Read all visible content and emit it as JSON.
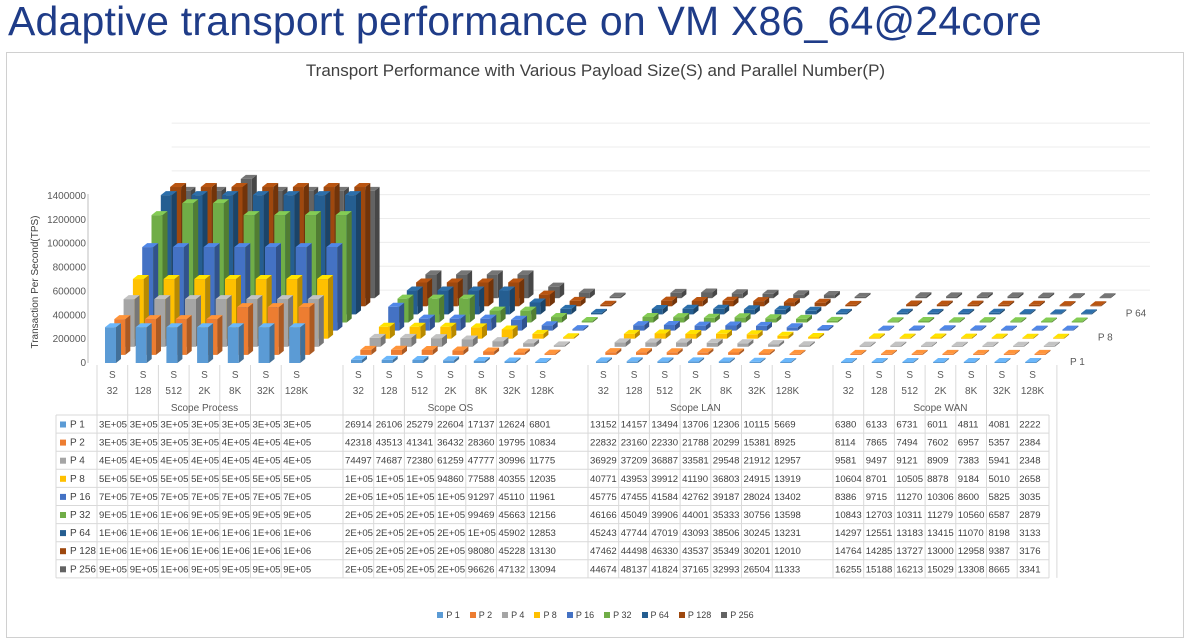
{
  "slide_title": "Adaptive transport performance on VM X86_64@24core",
  "chart_data": {
    "type": "bar",
    "variant": "3d-column-with-data-table",
    "title": "Transport Performance with Various Payload Size(S) and Parallel Number(P)",
    "ylabel": "Transaction Per Second(TPS)",
    "ylim": [
      0,
      1400000
    ],
    "yticks": [
      0,
      200000,
      400000,
      600000,
      800000,
      1000000,
      1200000,
      1400000
    ],
    "ytick_labels": [
      "0",
      "200000",
      "400000",
      "600000",
      "800000",
      "1000000",
      "1200000",
      "1400000"
    ],
    "depth_axis_labels": [
      "P 1",
      "P 8",
      "P 64"
    ],
    "groups": [
      "Scope Process",
      "Scope OS",
      "Scope LAN",
      "Scope WAN"
    ],
    "sizes": [
      "32",
      "128",
      "512",
      "2K",
      "8K",
      "32K",
      "128K"
    ],
    "series": [
      {
        "name": "P 1",
        "color": "#5b9bd5",
        "values": [
          [
            300000,
            300000,
            300000,
            300000,
            300000,
            300000,
            300000
          ],
          [
            26914,
            26106,
            25279,
            22604,
            17137,
            12624,
            6801
          ],
          [
            13152,
            14157,
            13494,
            13706,
            12306,
            10115,
            5669
          ],
          [
            6380,
            6133,
            6731,
            6011,
            4811,
            4081,
            2222
          ]
        ],
        "labels": [
          [
            "3E+05",
            "3E+05",
            "3E+05",
            "3E+05",
            "3E+05",
            "3E+05",
            "3E+05"
          ],
          [
            "26914",
            "26106",
            "25279",
            "22604",
            "17137",
            "12624",
            "6801"
          ],
          [
            "13152",
            "14157",
            "13494",
            "13706",
            "12306",
            "10115",
            "5669"
          ],
          [
            "6380",
            "6133",
            "6731",
            "6011",
            "4811",
            "4081",
            "2222"
          ]
        ]
      },
      {
        "name": "P 2",
        "color": "#ed7d31",
        "values": [
          [
            300000,
            300000,
            300000,
            300000,
            400000,
            400000,
            400000
          ],
          [
            42318,
            43513,
            41341,
            36432,
            28360,
            19795,
            10834
          ],
          [
            22832,
            23160,
            22330,
            21788,
            20299,
            15381,
            8925
          ],
          [
            8114,
            7865,
            7494,
            7602,
            6957,
            5357,
            2384
          ]
        ],
        "labels": [
          [
            "3E+05",
            "3E+05",
            "3E+05",
            "3E+05",
            "4E+05",
            "4E+05",
            "4E+05"
          ],
          [
            "42318",
            "43513",
            "41341",
            "36432",
            "28360",
            "19795",
            "10834"
          ],
          [
            "22832",
            "23160",
            "22330",
            "21788",
            "20299",
            "15381",
            "8925"
          ],
          [
            "8114",
            "7865",
            "7494",
            "7602",
            "6957",
            "5357",
            "2384"
          ]
        ]
      },
      {
        "name": "P 4",
        "color": "#a5a5a5",
        "values": [
          [
            400000,
            400000,
            400000,
            400000,
            400000,
            400000,
            400000
          ],
          [
            74497,
            74687,
            72380,
            61259,
            47777,
            30996,
            11775
          ],
          [
            36929,
            37209,
            36887,
            33581,
            29548,
            21912,
            12957
          ],
          [
            9581,
            9497,
            9121,
            8909,
            7383,
            5941,
            2348
          ]
        ],
        "labels": [
          [
            "4E+05",
            "4E+05",
            "4E+05",
            "4E+05",
            "4E+05",
            "4E+05",
            "4E+05"
          ],
          [
            "74497",
            "74687",
            "72380",
            "61259",
            "47777",
            "30996",
            "11775"
          ],
          [
            "36929",
            "37209",
            "36887",
            "33581",
            "29548",
            "21912",
            "12957"
          ],
          [
            "9581",
            "9497",
            "9121",
            "8909",
            "7383",
            "5941",
            "2348"
          ]
        ]
      },
      {
        "name": "P 8",
        "color": "#ffc000",
        "values": [
          [
            500000,
            500000,
            500000,
            500000,
            500000,
            500000,
            500000
          ],
          [
            100000,
            100000,
            100000,
            94860,
            77588,
            40355,
            12035
          ],
          [
            40771,
            43953,
            39912,
            41190,
            36803,
            24915,
            13919
          ],
          [
            10604,
            8701,
            10505,
            8878,
            9184,
            5010,
            2658
          ]
        ],
        "labels": [
          [
            "5E+05",
            "5E+05",
            "5E+05",
            "5E+05",
            "5E+05",
            "5E+05",
            "5E+05"
          ],
          [
            "1E+05",
            "1E+05",
            "1E+05",
            "94860",
            "77588",
            "40355",
            "12035"
          ],
          [
            "40771",
            "43953",
            "39912",
            "41190",
            "36803",
            "24915",
            "13919"
          ],
          [
            "10604",
            "8701",
            "10505",
            "8878",
            "9184",
            "5010",
            "2658"
          ]
        ]
      },
      {
        "name": "P 16",
        "color": "#4472c4",
        "values": [
          [
            700000,
            700000,
            700000,
            700000,
            700000,
            700000,
            700000
          ],
          [
            200000,
            100000,
            100000,
            100000,
            91297,
            45110,
            11961
          ],
          [
            45775,
            47455,
            41584,
            42762,
            39187,
            28024,
            13402
          ],
          [
            8386,
            9715,
            11270,
            10306,
            8600,
            5825,
            3035
          ]
        ],
        "labels": [
          [
            "7E+05",
            "7E+05",
            "7E+05",
            "7E+05",
            "7E+05",
            "7E+05",
            "7E+05"
          ],
          [
            "2E+05",
            "1E+05",
            "1E+05",
            "1E+05",
            "91297",
            "45110",
            "11961"
          ],
          [
            "45775",
            "47455",
            "41584",
            "42762",
            "39187",
            "28024",
            "13402"
          ],
          [
            "8386",
            "9715",
            "11270",
            "10306",
            "8600",
            "5825",
            "3035"
          ]
        ]
      },
      {
        "name": "P 32",
        "color": "#70ad47",
        "values": [
          [
            900000,
            1000000,
            1000000,
            900000,
            900000,
            900000,
            900000
          ],
          [
            200000,
            200000,
            200000,
            100000,
            99469,
            45663,
            12156
          ],
          [
            46166,
            45049,
            39906,
            44001,
            35333,
            30756,
            13598
          ],
          [
            10843,
            12703,
            10311,
            11279,
            10560,
            6587,
            2879
          ]
        ],
        "labels": [
          [
            "9E+05",
            "1E+06",
            "1E+06",
            "9E+05",
            "9E+05",
            "9E+05",
            "9E+05"
          ],
          [
            "2E+05",
            "2E+05",
            "2E+05",
            "1E+05",
            "99469",
            "45663",
            "12156"
          ],
          [
            "46166",
            "45049",
            "39906",
            "44001",
            "35333",
            "30756",
            "13598"
          ],
          [
            "10843",
            "12703",
            "10311",
            "11279",
            "10560",
            "6587",
            "2879"
          ]
        ]
      },
      {
        "name": "P 64",
        "color": "#255e91",
        "values": [
          [
            1000000,
            1000000,
            1000000,
            1000000,
            1000000,
            1000000,
            1000000
          ],
          [
            200000,
            200000,
            200000,
            200000,
            100000,
            45902,
            12853
          ],
          [
            45243,
            47744,
            47019,
            43093,
            38506,
            30245,
            13231
          ],
          [
            14297,
            12551,
            13183,
            13415,
            11070,
            8198,
            3133
          ]
        ],
        "labels": [
          [
            "1E+06",
            "1E+06",
            "1E+06",
            "1E+06",
            "1E+06",
            "1E+06",
            "1E+06"
          ],
          [
            "2E+05",
            "2E+05",
            "2E+05",
            "2E+05",
            "1E+05",
            "45902",
            "12853"
          ],
          [
            "45243",
            "47744",
            "47019",
            "43093",
            "38506",
            "30245",
            "13231"
          ],
          [
            "14297",
            "12551",
            "13183",
            "13415",
            "11070",
            "8198",
            "3133"
          ]
        ]
      },
      {
        "name": "P 128",
        "color": "#9e480e",
        "values": [
          [
            1000000,
            1000000,
            1000000,
            1000000,
            1000000,
            1000000,
            1000000
          ],
          [
            200000,
            200000,
            200000,
            200000,
            98080,
            45228,
            13130
          ],
          [
            47462,
            44498,
            46330,
            43537,
            35349,
            30201,
            12010
          ],
          [
            14764,
            14285,
            13727,
            13000,
            12958,
            9387,
            3176
          ]
        ],
        "labels": [
          [
            "1E+06",
            "1E+06",
            "1E+06",
            "1E+06",
            "1E+06",
            "1E+06",
            "1E+06"
          ],
          [
            "2E+05",
            "2E+05",
            "2E+05",
            "2E+05",
            "98080",
            "45228",
            "13130"
          ],
          [
            "47462",
            "44498",
            "46330",
            "43537",
            "35349",
            "30201",
            "12010"
          ],
          [
            "14764",
            "14285",
            "13727",
            "13000",
            "12958",
            "9387",
            "3176"
          ]
        ]
      },
      {
        "name": "P 256",
        "color": "#636363",
        "values": [
          [
            900000,
            900000,
            1000000,
            900000,
            900000,
            900000,
            900000
          ],
          [
            200000,
            200000,
            200000,
            200000,
            96626,
            47132,
            13094
          ],
          [
            44674,
            48137,
            41824,
            37165,
            32993,
            26504,
            11333
          ],
          [
            16255,
            15188,
            16213,
            15029,
            13308,
            8665,
            3341
          ]
        ],
        "labels": [
          [
            "9E+05",
            "9E+05",
            "1E+06",
            "9E+05",
            "9E+05",
            "9E+05",
            "9E+05"
          ],
          [
            "2E+05",
            "2E+05",
            "2E+05",
            "2E+05",
            "96626",
            "47132",
            "13094"
          ],
          [
            "44674",
            "48137",
            "41824",
            "37165",
            "32993",
            "26504",
            "11333"
          ],
          [
            "16255",
            "15188",
            "16213",
            "15029",
            "13308",
            "8665",
            "3341"
          ]
        ]
      }
    ],
    "legend": [
      "P 1",
      "P 2",
      "P 4",
      "P 8",
      "P 16",
      "P 32",
      "P 64",
      "P 128",
      "P 256"
    ],
    "legend_position": "bottom"
  }
}
